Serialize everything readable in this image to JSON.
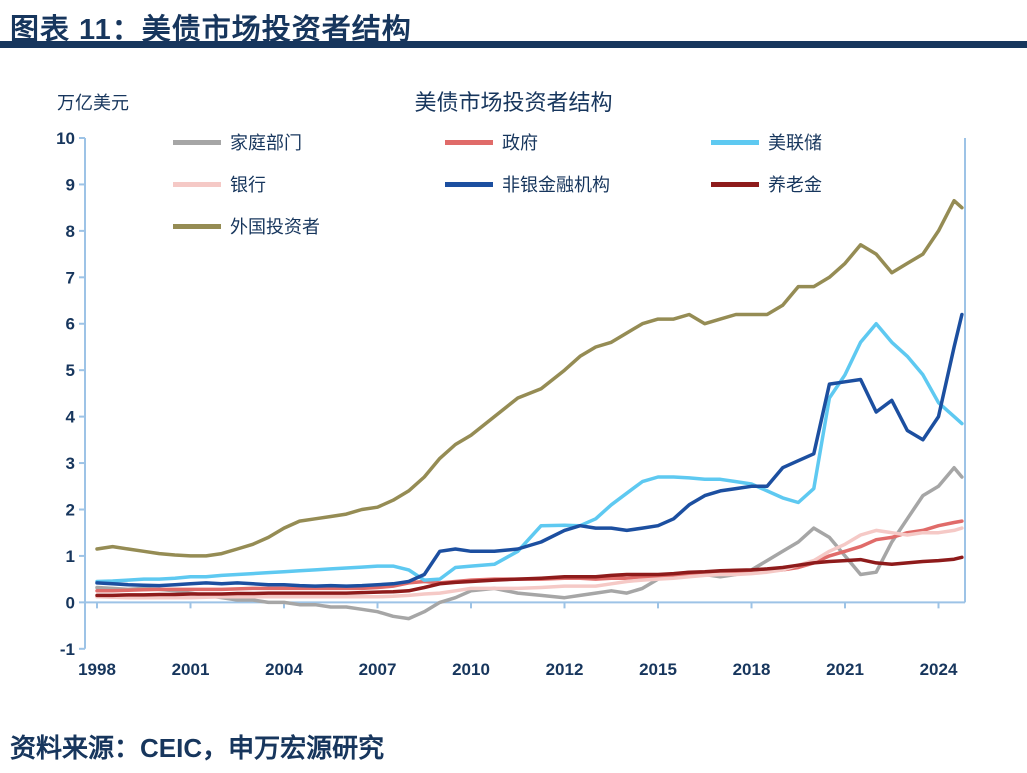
{
  "header": {
    "title": "图表 11：美债市场投资者结构"
  },
  "footer": {
    "source": "资料来源：CEIC，申万宏源研究"
  },
  "chart_data": {
    "type": "line",
    "title": "美债市场投资者结构",
    "unit_label": "万亿美元",
    "ylim": [
      -1,
      10
    ],
    "y_ticks": [
      10,
      9,
      8,
      7,
      6,
      5,
      4,
      3,
      2,
      1,
      0,
      -1
    ],
    "x_ticks": [
      1998,
      2001,
      2004,
      2007,
      2010,
      2012,
      2015,
      2018,
      2021,
      2024
    ],
    "grid": false,
    "legend_position": "top",
    "axis_color": "#9DC3E6",
    "label_color": "#17365D",
    "x": [
      1998,
      1998.5,
      1999,
      1999.5,
      2000,
      2000.5,
      2001,
      2001.5,
      2002,
      2002.5,
      2003,
      2003.5,
      2004,
      2004.5,
      2005,
      2005.5,
      2006,
      2006.5,
      2007,
      2007.5,
      2008,
      2008.5,
      2009,
      2009.5,
      2010,
      2010.5,
      2011,
      2011.5,
      2012,
      2012.5,
      2013,
      2013.5,
      2014,
      2014.5,
      2015,
      2015.5,
      2016,
      2016.5,
      2017,
      2017.5,
      2018,
      2018.5,
      2019,
      2019.5,
      2020,
      2020.5,
      2021,
      2021.5,
      2022,
      2022.5,
      2023,
      2023.5,
      2024,
      2024.5,
      2024.75
    ],
    "series": [
      {
        "name": "家庭部门",
        "color": "#A6A6A6",
        "values": [
          0.32,
          0.3,
          0.28,
          0.3,
          0.28,
          0.25,
          0.2,
          0.15,
          0.1,
          0.05,
          0.05,
          0.0,
          0.0,
          -0.05,
          -0.05,
          -0.1,
          -0.1,
          -0.15,
          -0.2,
          -0.3,
          -0.35,
          -0.2,
          0.0,
          0.1,
          0.25,
          0.3,
          0.2,
          0.15,
          0.1,
          0.15,
          0.2,
          0.25,
          0.2,
          0.3,
          0.5,
          0.6,
          0.65,
          0.6,
          0.55,
          0.6,
          0.7,
          0.9,
          1.1,
          1.3,
          1.6,
          1.4,
          1.0,
          0.6,
          0.65,
          1.3,
          1.8,
          2.3,
          2.5,
          2.9,
          2.7
        ]
      },
      {
        "name": "政府",
        "color": "#E06B69",
        "values": [
          0.25,
          0.25,
          0.26,
          0.27,
          0.28,
          0.28,
          0.28,
          0.28,
          0.28,
          0.29,
          0.3,
          0.3,
          0.3,
          0.3,
          0.3,
          0.3,
          0.3,
          0.3,
          0.32,
          0.35,
          0.42,
          0.45,
          0.42,
          0.45,
          0.48,
          0.5,
          0.5,
          0.5,
          0.52,
          0.52,
          0.5,
          0.52,
          0.52,
          0.55,
          0.55,
          0.55,
          0.58,
          0.6,
          0.62,
          0.63,
          0.65,
          0.68,
          0.7,
          0.75,
          0.85,
          1.0,
          1.1,
          1.2,
          1.35,
          1.4,
          1.5,
          1.55,
          1.65,
          1.72,
          1.75
        ]
      },
      {
        "name": "美联储",
        "color": "#5EC9F1",
        "values": [
          0.45,
          0.46,
          0.48,
          0.5,
          0.5,
          0.52,
          0.55,
          0.55,
          0.58,
          0.6,
          0.62,
          0.64,
          0.66,
          0.68,
          0.7,
          0.72,
          0.74,
          0.76,
          0.78,
          0.78,
          0.7,
          0.48,
          0.5,
          0.75,
          0.78,
          0.82,
          1.1,
          1.65,
          1.66,
          1.65,
          1.8,
          2.1,
          2.35,
          2.6,
          2.7,
          2.7,
          2.68,
          2.65,
          2.65,
          2.6,
          2.55,
          2.4,
          2.25,
          2.15,
          2.45,
          4.4,
          4.9,
          5.6,
          6.0,
          5.6,
          5.3,
          4.9,
          4.3,
          4.0,
          3.85
        ]
      },
      {
        "name": "银行",
        "color": "#F5C9C6",
        "values": [
          0.12,
          0.11,
          0.1,
          0.1,
          0.1,
          0.1,
          0.1,
          0.11,
          0.12,
          0.12,
          0.12,
          0.12,
          0.12,
          0.12,
          0.12,
          0.12,
          0.12,
          0.12,
          0.12,
          0.13,
          0.15,
          0.18,
          0.2,
          0.25,
          0.3,
          0.3,
          0.3,
          0.32,
          0.35,
          0.35,
          0.35,
          0.4,
          0.45,
          0.48,
          0.5,
          0.52,
          0.55,
          0.58,
          0.6,
          0.6,
          0.62,
          0.65,
          0.7,
          0.8,
          0.9,
          1.1,
          1.25,
          1.45,
          1.55,
          1.5,
          1.45,
          1.5,
          1.5,
          1.55,
          1.6
        ]
      },
      {
        "name": "非银金融机构",
        "color": "#1C4FA0",
        "values": [
          0.42,
          0.4,
          0.38,
          0.37,
          0.36,
          0.38,
          0.4,
          0.42,
          0.4,
          0.42,
          0.4,
          0.38,
          0.38,
          0.36,
          0.35,
          0.36,
          0.35,
          0.36,
          0.38,
          0.4,
          0.45,
          0.6,
          1.1,
          1.15,
          1.1,
          1.1,
          1.15,
          1.3,
          1.55,
          1.65,
          1.6,
          1.6,
          1.55,
          1.6,
          1.65,
          1.8,
          2.1,
          2.3,
          2.4,
          2.45,
          2.5,
          2.5,
          2.9,
          3.05,
          3.2,
          4.7,
          4.75,
          4.8,
          4.1,
          4.35,
          3.7,
          3.5,
          4.0,
          5.5,
          6.2
        ]
      },
      {
        "name": "养老金",
        "color": "#8E1B1B",
        "values": [
          0.15,
          0.15,
          0.16,
          0.16,
          0.17,
          0.17,
          0.18,
          0.18,
          0.18,
          0.19,
          0.19,
          0.2,
          0.2,
          0.2,
          0.2,
          0.2,
          0.2,
          0.21,
          0.22,
          0.23,
          0.25,
          0.32,
          0.4,
          0.43,
          0.45,
          0.48,
          0.5,
          0.52,
          0.55,
          0.55,
          0.55,
          0.58,
          0.6,
          0.6,
          0.6,
          0.62,
          0.65,
          0.66,
          0.68,
          0.69,
          0.7,
          0.72,
          0.75,
          0.8,
          0.85,
          0.88,
          0.9,
          0.92,
          0.85,
          0.82,
          0.85,
          0.88,
          0.9,
          0.93,
          0.97
        ]
      },
      {
        "name": "外国投资者",
        "color": "#958C54",
        "values": [
          1.15,
          1.2,
          1.15,
          1.1,
          1.05,
          1.02,
          1.0,
          1.0,
          1.05,
          1.15,
          1.25,
          1.4,
          1.6,
          1.75,
          1.8,
          1.85,
          1.9,
          2.0,
          2.05,
          2.2,
          2.4,
          2.7,
          3.1,
          3.4,
          3.6,
          4.0,
          4.4,
          4.6,
          5.0,
          5.3,
          5.5,
          5.6,
          5.8,
          6.0,
          6.1,
          6.1,
          6.2,
          6.0,
          6.1,
          6.2,
          6.2,
          6.2,
          6.4,
          6.8,
          6.8,
          7.0,
          7.3,
          7.7,
          7.5,
          7.1,
          7.3,
          7.5,
          8.0,
          8.65,
          8.5
        ]
      }
    ]
  }
}
